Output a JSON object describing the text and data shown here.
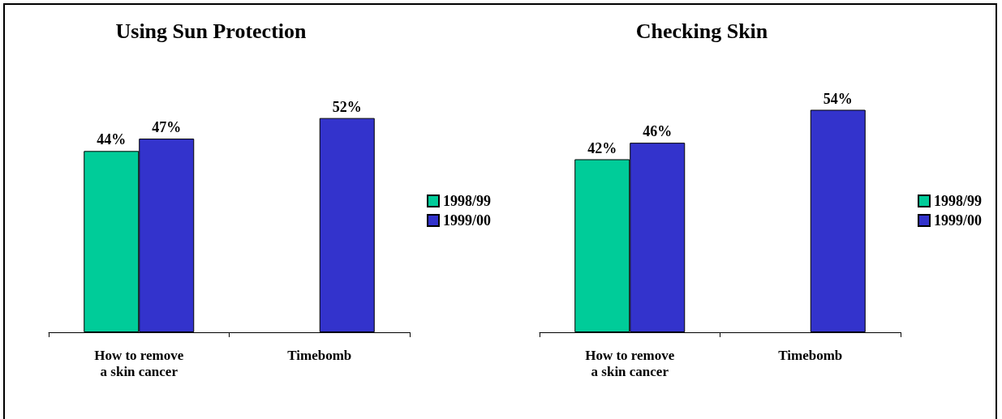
{
  "chart_data": [
    {
      "type": "bar",
      "title": "Using Sun Protection",
      "categories": [
        "How to remove\na skin cancer",
        "Timebomb"
      ],
      "legend": "right",
      "series": [
        {
          "name": "1998/99",
          "color": "#00cc99",
          "values": [
            44,
            null
          ],
          "value_labels": [
            "44%",
            null
          ]
        },
        {
          "name": "1999/00",
          "color": "#3333cc",
          "values": [
            47,
            52
          ],
          "value_labels": [
            "47%",
            "52%"
          ]
        }
      ]
    },
    {
      "type": "bar",
      "title": "Checking Skin",
      "categories": [
        "How to remove\na skin cancer",
        "Timebomb"
      ],
      "legend": "right",
      "series": [
        {
          "name": "1998/99",
          "color": "#00cc99",
          "values": [
            42,
            null
          ],
          "value_labels": [
            "42%",
            null
          ]
        },
        {
          "name": "1999/00",
          "color": "#3333cc",
          "values": [
            46,
            54
          ],
          "value_labels": [
            "46%",
            "54%"
          ]
        }
      ]
    }
  ]
}
